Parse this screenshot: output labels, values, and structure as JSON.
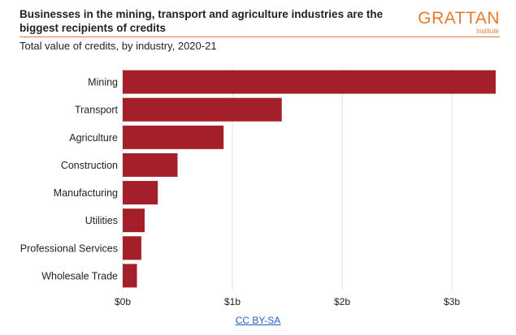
{
  "header": {
    "title": "Businesses in the mining, transport and agriculture industries are the biggest recipients of credits",
    "subtitle": "Total value of credits, by industry, 2020-21",
    "logo_word": "GRATTAN",
    "logo_sub": "Institute"
  },
  "footer": {
    "license_link": "CC BY-SA"
  },
  "colors": {
    "bar": "#a31f29",
    "grid": "#dddddd",
    "accent": "#e8792c"
  },
  "chart_data": {
    "type": "bar",
    "orientation": "horizontal",
    "title": "Businesses in the mining, transport and agriculture industries are the biggest recipients of credits",
    "subtitle": "Total value of credits, by industry, 2020-21",
    "categories": [
      "Mining",
      "Transport",
      "Agriculture",
      "Construction",
      "Manufacturing",
      "Utilities",
      "Professional Services",
      "Wholesale Trade"
    ],
    "values": [
      3.4,
      1.45,
      0.92,
      0.5,
      0.32,
      0.2,
      0.17,
      0.13
    ],
    "xlim": [
      0,
      3.4
    ],
    "xticks": [
      0,
      1,
      2,
      3
    ],
    "xtick_labels": [
      "$0b",
      "$1b",
      "$2b",
      "$3b"
    ],
    "grid": "vertical"
  }
}
